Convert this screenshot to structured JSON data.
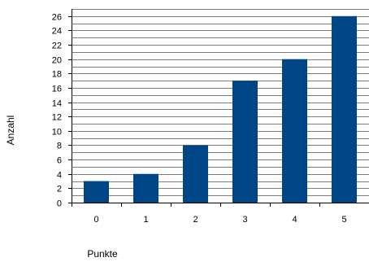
{
  "chart_data": {
    "type": "bar",
    "title": "",
    "xlabel": "Punkte",
    "ylabel": "Anzahl",
    "categories": [
      "0",
      "1",
      "2",
      "3",
      "4",
      "5"
    ],
    "values": [
      3,
      4,
      8,
      17,
      20,
      26
    ],
    "ylim": [
      0,
      27
    ],
    "yticks": [
      0,
      2,
      4,
      6,
      8,
      10,
      12,
      14,
      16,
      18,
      20,
      22,
      24,
      26
    ],
    "grid": true,
    "legend": "none",
    "colors": {
      "bar": "#004586",
      "grid": "#000000",
      "axis": "#000000"
    }
  }
}
